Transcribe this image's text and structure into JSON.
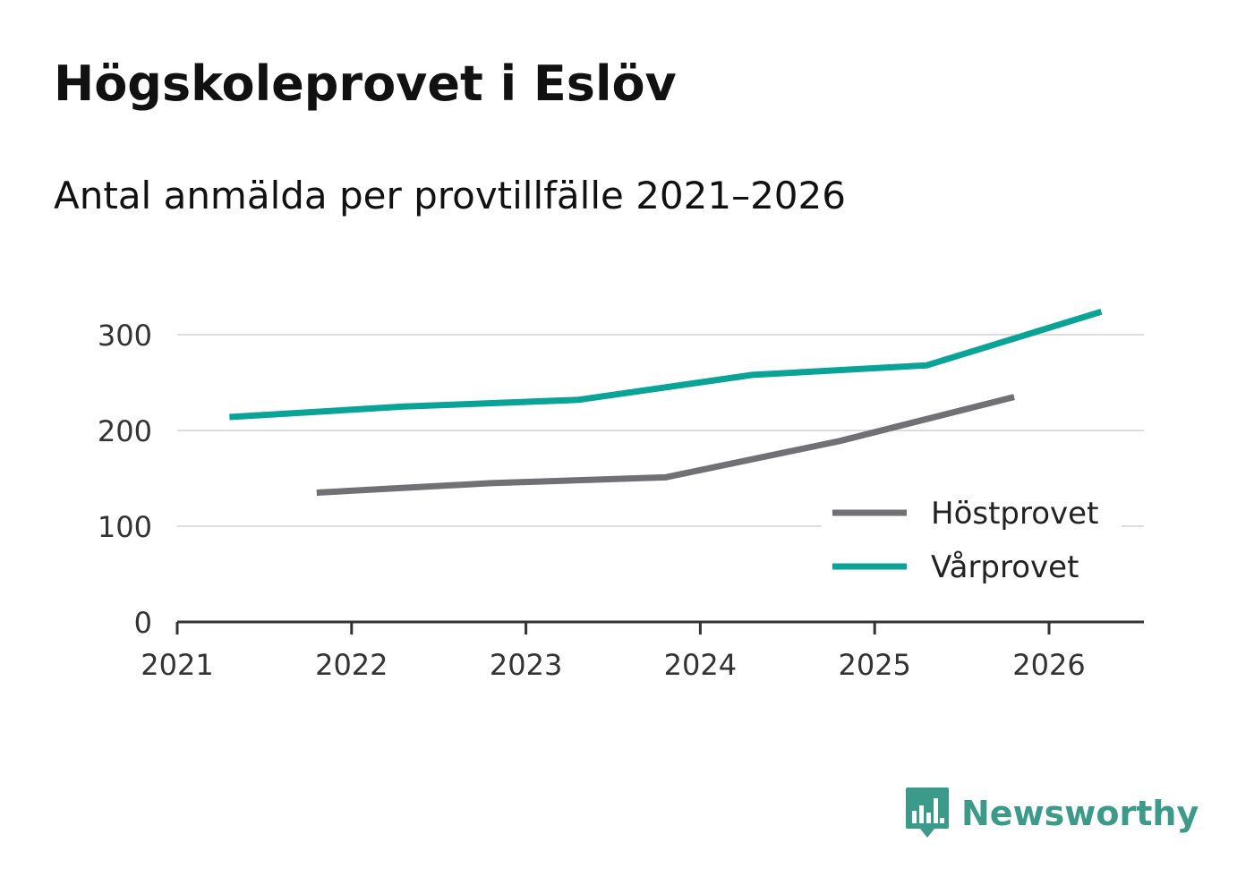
{
  "title": "Högskoleprovet i Eslöv",
  "subtitle": "Antal anmälda per provtillfälle 2021–2026",
  "colors": {
    "hostprovet": "#707075",
    "varprovet": "#0aa397",
    "grid": "#dddddd",
    "axis": "#333333",
    "brand": "#3c9a8a"
  },
  "brand": {
    "name": "Newsworthy",
    "icon": "newsworthy-logo-icon"
  },
  "chart_data": {
    "type": "line",
    "title": "Högskoleprovet i Eslöv",
    "subtitle": "Antal anmälda per provtillfälle 2021–2026",
    "xlabel": "",
    "ylabel": "",
    "xlim": [
      2021,
      2026.55
    ],
    "ylim": [
      0,
      300
    ],
    "x_ticks": [
      "2021",
      "2022",
      "2023",
      "2024",
      "2025",
      "2026"
    ],
    "x_tick_values": [
      2021,
      2022,
      2023,
      2024,
      2025,
      2026
    ],
    "y_ticks": [
      "0",
      "100",
      "200",
      "300"
    ],
    "y_tick_values": [
      0,
      100,
      200,
      300
    ],
    "grid": true,
    "legend_position": "bottom-right",
    "series": [
      {
        "name": "Höstprovet",
        "color_key": "hostprovet",
        "x": [
          2021.8,
          2022.8,
          2023.8,
          2024.8,
          2025.8
        ],
        "values": [
          135,
          145,
          151,
          189,
          235
        ]
      },
      {
        "name": "Vårprovet",
        "color_key": "varprovet",
        "x": [
          2021.3,
          2022.3,
          2023.3,
          2024.3,
          2025.3,
          2026.3
        ],
        "values": [
          214,
          225,
          232,
          258,
          268,
          324
        ]
      }
    ]
  }
}
